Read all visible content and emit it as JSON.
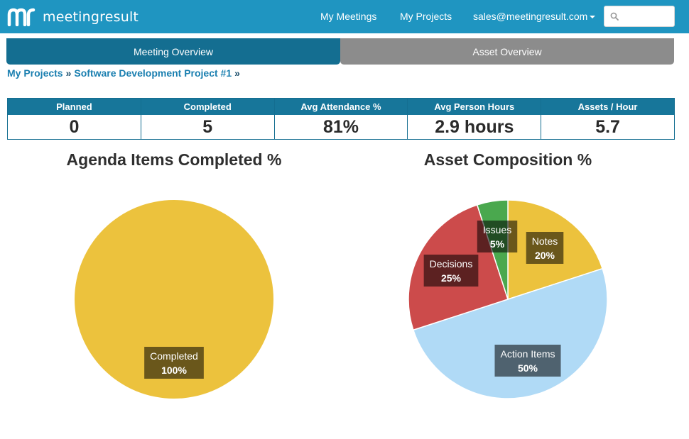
{
  "header": {
    "brand": "meetingresult",
    "nav": [
      "My Meetings",
      "My Projects"
    ],
    "user": "sales@meetingresult.com",
    "search_placeholder": ""
  },
  "tabs": [
    {
      "label": "Meeting Overview",
      "active": true
    },
    {
      "label": "Asset Overview",
      "active": false
    }
  ],
  "breadcrumb": [
    "My Projects",
    "Software Development Project #1"
  ],
  "stats": [
    {
      "label": "Planned",
      "value": "0"
    },
    {
      "label": "Completed",
      "value": "5"
    },
    {
      "label": "Avg Attendance %",
      "value": "81%"
    },
    {
      "label": "Avg Person Hours",
      "value": "2.9 hours"
    },
    {
      "label": "Assets / Hour",
      "value": "5.7"
    }
  ],
  "colors": {
    "navbar": "#1f95c1",
    "active_tab": "#146e91",
    "inactive_tab": "#8c8c8c",
    "completed": "#ecc23d",
    "notes": "#ecc23d",
    "action_items": "#b0daf6",
    "decisions": "#cc4b4b",
    "issues": "#4aa84e"
  },
  "chart_data": [
    {
      "type": "pie",
      "title": "Agenda Items Completed %",
      "slices": [
        {
          "label": "Completed",
          "value": 100,
          "display": "100%",
          "color": "#ecc23d"
        }
      ]
    },
    {
      "type": "pie",
      "title": "Asset Composition %",
      "slices": [
        {
          "label": "Notes",
          "value": 20,
          "display": "20%",
          "color": "#ecc23d"
        },
        {
          "label": "Action Items",
          "value": 50,
          "display": "50%",
          "color": "#b0daf6"
        },
        {
          "label": "Decisions",
          "value": 25,
          "display": "25%",
          "color": "#cc4b4b"
        },
        {
          "label": "Issues",
          "value": 5,
          "display": "5%",
          "color": "#4aa84e"
        }
      ]
    }
  ]
}
